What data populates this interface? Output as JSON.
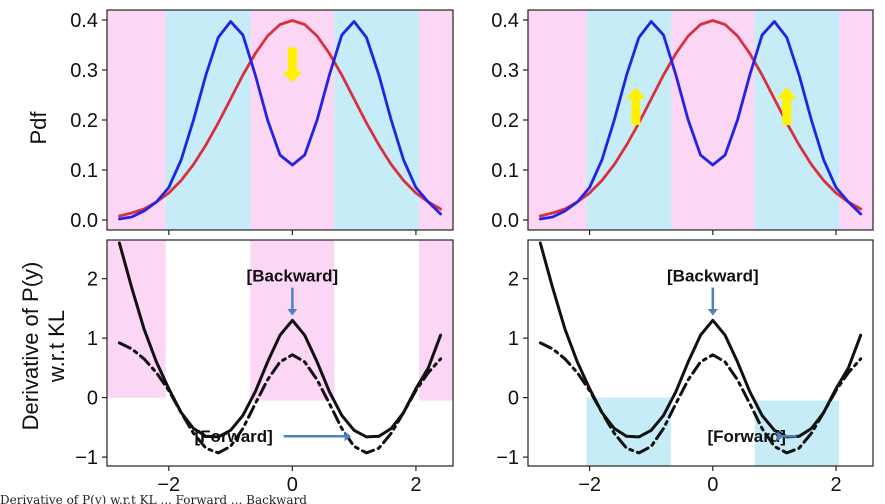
{
  "figure": {
    "ylabel_top": "Pdf",
    "ylabel_bottom_line1": "Derivative of P(y)",
    "ylabel_bottom_line2": "w.r.t KL",
    "caption_fragment": "Derivative of P(y) w.r.t KL ... Forward ... Backward"
  },
  "colors": {
    "pink": "#fbd6f5",
    "cyan": "#c6ecf7",
    "red": "#d9303e",
    "blue": "#2323e6",
    "black": "#111111",
    "arrow_yellow": "#fff200",
    "arrow_steel": "#4f81bd"
  },
  "chart_data": [
    {
      "type": "line",
      "panel": "top-left",
      "ylabel": "Pdf",
      "xlim": [
        -3.0,
        2.6
      ],
      "ylim": [
        -0.02,
        0.42
      ],
      "xticks": [
        -2,
        0,
        2
      ],
      "xtick_labels": [],
      "yticks": [
        0.0,
        0.1,
        0.2,
        0.3,
        0.4
      ],
      "ytick_labels": [
        "0.0",
        "0.1",
        "0.2",
        "0.3",
        "0.4"
      ],
      "shaded_regions": [
        {
          "x0": -3.0,
          "x1": -2.05,
          "color": "pink"
        },
        {
          "x0": -2.05,
          "x1": -0.68,
          "color": "cyan"
        },
        {
          "x0": -0.68,
          "x1": 0.68,
          "color": "pink"
        },
        {
          "x0": 0.68,
          "x1": 2.05,
          "color": "cyan"
        },
        {
          "x0": 2.05,
          "x1": 2.6,
          "color": "pink"
        }
      ],
      "series": [
        {
          "style": "red",
          "x": [
            -2.8,
            -2.6,
            -2.4,
            -2.2,
            -2.0,
            -1.8,
            -1.6,
            -1.4,
            -1.2,
            -1.0,
            -0.8,
            -0.6,
            -0.4,
            -0.2,
            0.0,
            0.2,
            0.4,
            0.6,
            0.8,
            1.0,
            1.2,
            1.4,
            1.6,
            1.8,
            2.0,
            2.2,
            2.4
          ],
          "y": [
            0.008,
            0.014,
            0.022,
            0.036,
            0.054,
            0.079,
            0.111,
            0.15,
            0.194,
            0.242,
            0.29,
            0.333,
            0.368,
            0.391,
            0.399,
            0.391,
            0.368,
            0.333,
            0.29,
            0.242,
            0.194,
            0.15,
            0.111,
            0.079,
            0.054,
            0.036,
            0.022
          ]
        },
        {
          "style": "blue",
          "x": [
            -2.8,
            -2.6,
            -2.4,
            -2.2,
            -2.0,
            -1.8,
            -1.6,
            -1.4,
            -1.2,
            -1.0,
            -0.8,
            -0.6,
            -0.4,
            -0.2,
            0.0,
            0.2,
            0.4,
            0.6,
            0.8,
            1.0,
            1.2,
            1.4,
            1.6,
            1.8,
            2.0,
            2.2,
            2.4
          ],
          "y": [
            0.002,
            0.006,
            0.018,
            0.036,
            0.065,
            0.12,
            0.2,
            0.29,
            0.365,
            0.397,
            0.37,
            0.29,
            0.2,
            0.13,
            0.11,
            0.13,
            0.2,
            0.29,
            0.37,
            0.397,
            0.365,
            0.29,
            0.2,
            0.12,
            0.065,
            0.036,
            0.012
          ]
        }
      ],
      "arrows": [
        {
          "color": "arrow_yellow",
          "direction": "down",
          "x": 0.0,
          "y_from": 0.345,
          "y_to": 0.275
        }
      ]
    },
    {
      "type": "line",
      "panel": "top-right",
      "xlim": [
        -3.0,
        2.6
      ],
      "ylim": [
        -0.02,
        0.42
      ],
      "xticks": [
        -2,
        0,
        2
      ],
      "xtick_labels": [],
      "yticks": [
        0.0,
        0.1,
        0.2,
        0.3,
        0.4
      ],
      "ytick_labels": [
        "0.0",
        "0.1",
        "0.2",
        "0.3",
        "0.4"
      ],
      "shaded_regions": [
        {
          "x0": -3.0,
          "x1": -2.05,
          "color": "pink"
        },
        {
          "x0": -2.05,
          "x1": -0.68,
          "color": "cyan"
        },
        {
          "x0": -0.68,
          "x1": 0.68,
          "color": "pink"
        },
        {
          "x0": 0.68,
          "x1": 2.05,
          "color": "cyan"
        },
        {
          "x0": 2.05,
          "x1": 2.6,
          "color": "pink"
        }
      ],
      "series": [
        {
          "style": "red",
          "x": [
            -2.8,
            -2.6,
            -2.4,
            -2.2,
            -2.0,
            -1.8,
            -1.6,
            -1.4,
            -1.2,
            -1.0,
            -0.8,
            -0.6,
            -0.4,
            -0.2,
            0.0,
            0.2,
            0.4,
            0.6,
            0.8,
            1.0,
            1.2,
            1.4,
            1.6,
            1.8,
            2.0,
            2.2,
            2.4
          ],
          "y": [
            0.008,
            0.014,
            0.022,
            0.036,
            0.054,
            0.079,
            0.111,
            0.15,
            0.194,
            0.242,
            0.29,
            0.333,
            0.368,
            0.391,
            0.399,
            0.391,
            0.368,
            0.333,
            0.29,
            0.242,
            0.194,
            0.15,
            0.111,
            0.079,
            0.054,
            0.036,
            0.022
          ]
        },
        {
          "style": "blue",
          "x": [
            -2.8,
            -2.6,
            -2.4,
            -2.2,
            -2.0,
            -1.8,
            -1.6,
            -1.4,
            -1.2,
            -1.0,
            -0.8,
            -0.6,
            -0.4,
            -0.2,
            0.0,
            0.2,
            0.4,
            0.6,
            0.8,
            1.0,
            1.2,
            1.4,
            1.6,
            1.8,
            2.0,
            2.2,
            2.4
          ],
          "y": [
            0.002,
            0.006,
            0.018,
            0.036,
            0.065,
            0.12,
            0.2,
            0.29,
            0.365,
            0.397,
            0.37,
            0.29,
            0.2,
            0.13,
            0.11,
            0.13,
            0.2,
            0.29,
            0.37,
            0.397,
            0.365,
            0.29,
            0.2,
            0.12,
            0.065,
            0.036,
            0.012
          ]
        }
      ],
      "arrows": [
        {
          "color": "arrow_yellow",
          "direction": "up",
          "x": -1.25,
          "y_from": 0.19,
          "y_to": 0.265
        },
        {
          "color": "arrow_yellow",
          "direction": "up",
          "x": 1.2,
          "y_from": 0.19,
          "y_to": 0.265
        }
      ]
    },
    {
      "type": "line",
      "panel": "bottom-left",
      "ylabel": "Derivative of P(y) w.r.t KL",
      "xlim": [
        -3.0,
        2.6
      ],
      "ylim": [
        -1.15,
        2.65
      ],
      "xticks": [
        -2,
        0,
        2
      ],
      "xtick_labels": [
        "−2",
        "0",
        "2"
      ],
      "yticks": [
        -1,
        0,
        1,
        2
      ],
      "ytick_labels": [
        "−1",
        "0",
        "1",
        "2"
      ],
      "shaded_regions": [
        {
          "x0": -3.0,
          "x1": -2.05,
          "y0": 0.0,
          "y1": 2.65,
          "color": "pink"
        },
        {
          "x0": -0.68,
          "x1": 0.68,
          "y0": -0.05,
          "y1": 2.65,
          "color": "pink"
        },
        {
          "x0": 2.05,
          "x1": 2.6,
          "y0": -0.05,
          "y1": 2.65,
          "color": "pink"
        }
      ],
      "series": [
        {
          "style": "solid",
          "x": [
            -2.8,
            -2.6,
            -2.4,
            -2.2,
            -2.0,
            -1.8,
            -1.6,
            -1.4,
            -1.2,
            -1.0,
            -0.8,
            -0.6,
            -0.4,
            -0.2,
            0.0,
            0.2,
            0.4,
            0.6,
            0.8,
            1.0,
            1.2,
            1.4,
            1.6,
            1.8,
            2.0,
            2.2,
            2.4
          ],
          "y": [
            2.6,
            1.85,
            1.15,
            0.6,
            0.15,
            -0.25,
            -0.52,
            -0.65,
            -0.66,
            -0.55,
            -0.3,
            0.1,
            0.6,
            1.05,
            1.3,
            1.05,
            0.6,
            0.1,
            -0.3,
            -0.55,
            -0.66,
            -0.65,
            -0.52,
            -0.25,
            0.15,
            0.5,
            1.05
          ]
        },
        {
          "style": "dashdot",
          "x": [
            -2.8,
            -2.6,
            -2.4,
            -2.2,
            -2.0,
            -1.8,
            -1.6,
            -1.4,
            -1.2,
            -1.0,
            -0.8,
            -0.6,
            -0.4,
            -0.2,
            0.0,
            0.2,
            0.4,
            0.6,
            0.8,
            1.0,
            1.2,
            1.4,
            1.6,
            1.8,
            2.0,
            2.2,
            2.4
          ],
          "y": [
            0.92,
            0.82,
            0.65,
            0.42,
            0.12,
            -0.25,
            -0.6,
            -0.85,
            -0.93,
            -0.82,
            -0.52,
            -0.1,
            0.3,
            0.6,
            0.72,
            0.6,
            0.3,
            -0.1,
            -0.52,
            -0.82,
            -0.93,
            -0.85,
            -0.6,
            -0.25,
            0.12,
            0.42,
            0.65
          ]
        }
      ],
      "annotations": [
        {
          "text": "[Backward]",
          "x": 0.0,
          "y": 1.95,
          "arrow_to_y": 1.38,
          "arrow_dir": "down"
        },
        {
          "text": "[Forward]",
          "x": -0.95,
          "y": -0.75,
          "arrow_to_x": 0.95,
          "arrow_dir": "right"
        }
      ]
    },
    {
      "type": "line",
      "panel": "bottom-right",
      "xlim": [
        -3.0,
        2.6
      ],
      "ylim": [
        -1.15,
        2.65
      ],
      "xticks": [
        -2,
        0,
        2
      ],
      "xtick_labels": [
        "−2",
        "0",
        "2"
      ],
      "yticks": [
        -1,
        0,
        1,
        2
      ],
      "ytick_labels": [
        "−1",
        "0",
        "1",
        "2"
      ],
      "shaded_regions": [
        {
          "x0": -2.05,
          "x1": -0.68,
          "y0": -1.15,
          "y1": 0.0,
          "color": "cyan"
        },
        {
          "x0": 0.68,
          "x1": 2.05,
          "y0": -1.15,
          "y1": -0.05,
          "color": "cyan"
        }
      ],
      "series": [
        {
          "style": "solid",
          "x": [
            -2.8,
            -2.6,
            -2.4,
            -2.2,
            -2.0,
            -1.8,
            -1.6,
            -1.4,
            -1.2,
            -1.0,
            -0.8,
            -0.6,
            -0.4,
            -0.2,
            0.0,
            0.2,
            0.4,
            0.6,
            0.8,
            1.0,
            1.2,
            1.4,
            1.6,
            1.8,
            2.0,
            2.2,
            2.4
          ],
          "y": [
            2.6,
            1.85,
            1.15,
            0.6,
            0.15,
            -0.25,
            -0.52,
            -0.65,
            -0.66,
            -0.55,
            -0.3,
            0.1,
            0.6,
            1.05,
            1.3,
            1.05,
            0.6,
            0.1,
            -0.3,
            -0.55,
            -0.66,
            -0.65,
            -0.52,
            -0.25,
            0.15,
            0.5,
            1.05
          ]
        },
        {
          "style": "dashdot",
          "x": [
            -2.8,
            -2.6,
            -2.4,
            -2.2,
            -2.0,
            -1.8,
            -1.6,
            -1.4,
            -1.2,
            -1.0,
            -0.8,
            -0.6,
            -0.4,
            -0.2,
            0.0,
            0.2,
            0.4,
            0.6,
            0.8,
            1.0,
            1.2,
            1.4,
            1.6,
            1.8,
            2.0,
            2.2,
            2.4
          ],
          "y": [
            0.92,
            0.82,
            0.65,
            0.42,
            0.12,
            -0.25,
            -0.6,
            -0.85,
            -0.93,
            -0.82,
            -0.52,
            -0.1,
            0.3,
            0.6,
            0.72,
            0.6,
            0.3,
            -0.1,
            -0.52,
            -0.82,
            -0.93,
            -0.85,
            -0.6,
            -0.25,
            0.12,
            0.42,
            0.65
          ]
        }
      ],
      "annotations": [
        {
          "text": "[Backward]",
          "x": 0.0,
          "y": 1.95,
          "arrow_to_y": 1.38,
          "arrow_dir": "down"
        },
        {
          "text": "[Forward]",
          "x": 0.55,
          "y": -0.75,
          "arrow_to_x": 1.15,
          "arrow_dir": "right"
        }
      ]
    }
  ]
}
